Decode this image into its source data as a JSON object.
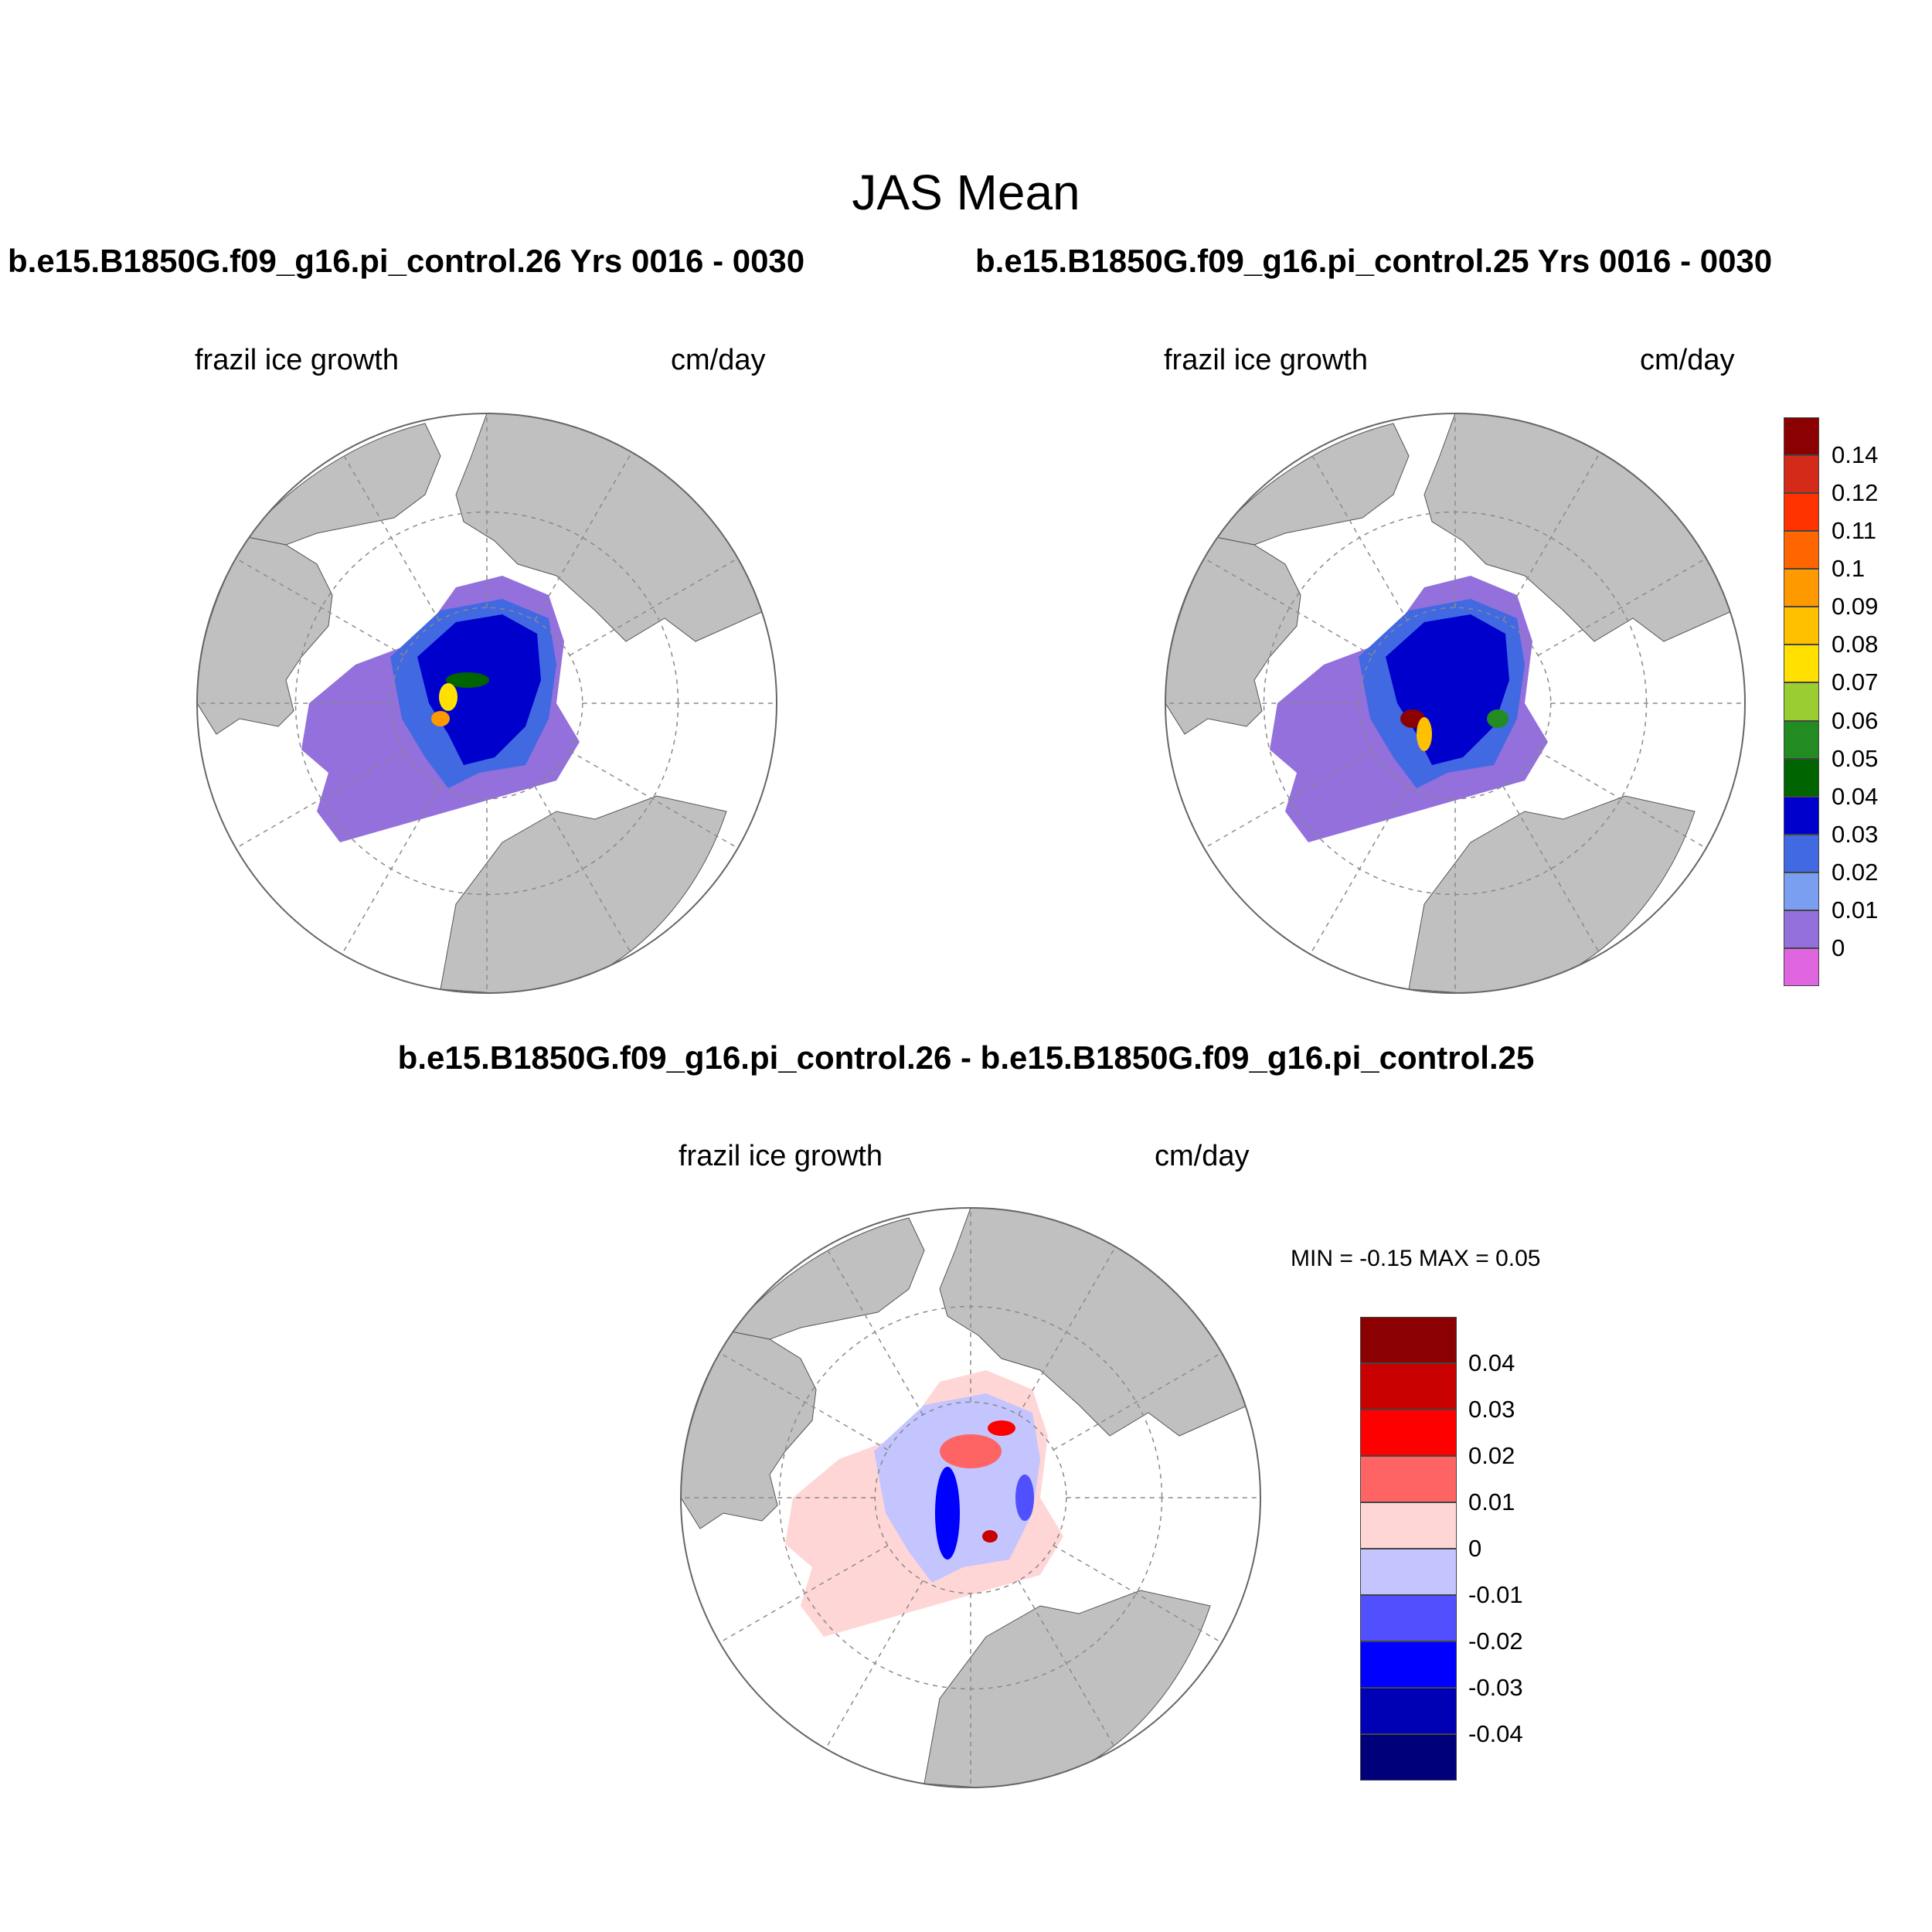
{
  "title": "JAS Mean",
  "panels": [
    {
      "id": "left",
      "case_title": "b.e15.B1850G.f09_g16.pi_control.26  Yrs 0016 - 0030",
      "variable": "frazil ice growth",
      "units": "cm/day"
    },
    {
      "id": "right",
      "case_title": "b.e15.B1850G.f09_g16.pi_control.25  Yrs 0016 - 0030",
      "variable": "frazil ice growth",
      "units": "cm/day"
    },
    {
      "id": "diff",
      "case_title": "b.e15.B1850G.f09_g16.pi_control.26 - b.e15.B1850G.f09_g16.pi_control.25",
      "variable": "frazil ice growth",
      "units": "cm/day",
      "minmax": "MIN =  -0.15 MAX =   0.05"
    }
  ],
  "colorbar_main": {
    "labels": [
      "0.14",
      "0.12",
      "0.11",
      "0.1",
      "0.09",
      "0.08",
      "0.07",
      "0.06",
      "0.05",
      "0.04",
      "0.03",
      "0.02",
      "0.01",
      "0"
    ],
    "colors": [
      "#8b0000",
      "#d42a1a",
      "#ff3300",
      "#ff6600",
      "#ff9900",
      "#ffc000",
      "#ffe000",
      "#9acd32",
      "#228b22",
      "#006400",
      "#0000cd",
      "#4169e1",
      "#7b9ff0",
      "#9370db",
      "#e066e0"
    ]
  },
  "colorbar_diff": {
    "labels": [
      "0.04",
      "0.03",
      "0.02",
      "0.01",
      "0",
      "-0.01",
      "-0.02",
      "-0.03",
      "-0.04"
    ],
    "colors": [
      "#8b0000",
      "#c80000",
      "#ff0000",
      "#ff6464",
      "#ffd6d6",
      "#c4c4ff",
      "#5050ff",
      "#0000ff",
      "#0000b4",
      "#00007a"
    ]
  },
  "map_colors": {
    "land": "#c0c0c0",
    "ocean": "#ffffff",
    "grid": "#8a8a8a"
  }
}
